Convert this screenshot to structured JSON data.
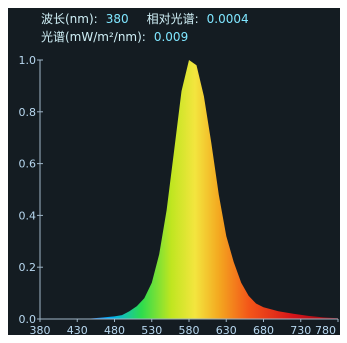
{
  "readout": {
    "wavelength_label": "波长(nm):",
    "wavelength_value": "380",
    "relative_label": "相对光谱:",
    "relative_value": "0.0004",
    "spectrum_label": "光谱(mW/m²/nm):",
    "spectrum_value": "0.009"
  },
  "colors": {
    "screen_bg": "#141c22",
    "axis": "#9fb6c8",
    "tick_label": "#b8d8f0",
    "readout_text": "#9fe8f4"
  },
  "chart_data": {
    "type": "area",
    "title": "",
    "xlabel": "",
    "ylabel": "",
    "x_ticks": [
      380,
      430,
      480,
      530,
      580,
      630,
      680,
      730,
      780
    ],
    "y_ticks": [
      "0.0",
      "0.2",
      "0.4",
      "0.6",
      "0.8",
      "1.0"
    ],
    "xlim": [
      380,
      780
    ],
    "ylim": [
      0,
      1.0
    ],
    "grid": false,
    "fill": "spectral-gradient",
    "series": [
      {
        "x": [
          380,
          400,
          420,
          440,
          460,
          480,
          490,
          500,
          510,
          520,
          530,
          540,
          550,
          560,
          570,
          580,
          590,
          600,
          610,
          620,
          630,
          640,
          650,
          660,
          670,
          680,
          700,
          720,
          740,
          760,
          780
        ],
        "values": [
          0.0,
          0.0,
          0.0,
          0.0,
          0.005,
          0.01,
          0.015,
          0.03,
          0.05,
          0.08,
          0.14,
          0.25,
          0.42,
          0.65,
          0.88,
          1.0,
          0.98,
          0.86,
          0.68,
          0.48,
          0.32,
          0.22,
          0.14,
          0.09,
          0.06,
          0.045,
          0.03,
          0.02,
          0.012,
          0.006,
          0.003
        ]
      }
    ]
  }
}
